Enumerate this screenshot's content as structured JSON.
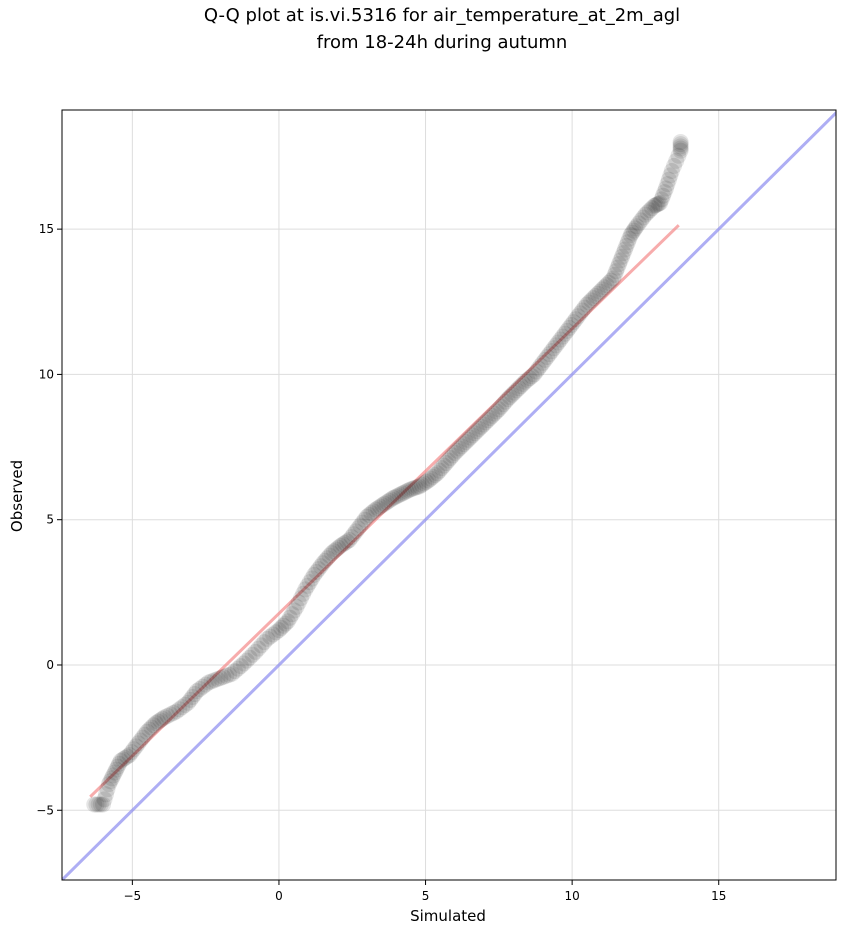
{
  "chart_data": {
    "type": "scatter",
    "title_line1": "Q-Q plot at is.vi.5316 for air_temperature_at_2m_agl",
    "title_line2": "from 18-24h during autumn",
    "xlabel": "Simulated",
    "ylabel": "Observed",
    "xlim": [
      -7.4,
      19.0
    ],
    "ylim": [
      -7.4,
      19.1
    ],
    "xticks": [
      -5,
      0,
      5,
      10,
      15
    ],
    "yticks": [
      -5,
      0,
      5,
      10,
      15
    ],
    "xtick_labels": [
      "−5",
      "0",
      "5",
      "10",
      "15"
    ],
    "ytick_labels": [
      "−5",
      "0",
      "5",
      "10",
      "15"
    ],
    "grid": true,
    "series": [
      {
        "kind": "points",
        "color": "#000000",
        "opacity": 0.1,
        "points": [
          [
            -6.3,
            -4.8
          ],
          [
            -6.0,
            -4.8
          ],
          [
            -5.8,
            -4.1
          ],
          [
            -5.6,
            -3.7
          ],
          [
            -5.4,
            -3.3
          ],
          [
            -5.1,
            -3.1
          ],
          [
            -4.8,
            -2.7
          ],
          [
            -4.5,
            -2.3
          ],
          [
            -4.2,
            -2.0
          ],
          [
            -3.9,
            -1.8
          ],
          [
            -3.5,
            -1.6
          ],
          [
            -3.1,
            -1.3
          ],
          [
            -2.8,
            -0.9
          ],
          [
            -2.4,
            -0.6
          ],
          [
            -2.0,
            -0.45
          ],
          [
            -1.6,
            -0.3
          ],
          [
            -1.2,
            0.05
          ],
          [
            -0.8,
            0.45
          ],
          [
            -0.4,
            0.9
          ],
          [
            0.0,
            1.2
          ],
          [
            0.3,
            1.5
          ],
          [
            0.6,
            2.0
          ],
          [
            0.9,
            2.6
          ],
          [
            1.2,
            3.1
          ],
          [
            1.5,
            3.5
          ],
          [
            1.8,
            3.85
          ],
          [
            2.1,
            4.1
          ],
          [
            2.4,
            4.3
          ],
          [
            2.7,
            4.7
          ],
          [
            3.0,
            5.1
          ],
          [
            3.3,
            5.35
          ],
          [
            3.6,
            5.55
          ],
          [
            3.9,
            5.75
          ],
          [
            4.2,
            5.9
          ],
          [
            4.5,
            6.05
          ],
          [
            4.8,
            6.15
          ],
          [
            5.1,
            6.35
          ],
          [
            5.4,
            6.6
          ],
          [
            5.7,
            6.95
          ],
          [
            6.0,
            7.3
          ],
          [
            6.3,
            7.6
          ],
          [
            6.6,
            7.9
          ],
          [
            6.9,
            8.2
          ],
          [
            7.2,
            8.5
          ],
          [
            7.5,
            8.8
          ],
          [
            7.8,
            9.15
          ],
          [
            8.1,
            9.45
          ],
          [
            8.4,
            9.75
          ],
          [
            8.7,
            10.0
          ],
          [
            9.0,
            10.4
          ],
          [
            9.3,
            10.8
          ],
          [
            9.6,
            11.2
          ],
          [
            9.9,
            11.6
          ],
          [
            10.2,
            12.0
          ],
          [
            10.5,
            12.4
          ],
          [
            10.8,
            12.7
          ],
          [
            11.1,
            13.0
          ],
          [
            11.4,
            13.3
          ],
          [
            11.6,
            13.8
          ],
          [
            11.8,
            14.3
          ],
          [
            12.0,
            14.8
          ],
          [
            12.2,
            15.1
          ],
          [
            12.5,
            15.5
          ],
          [
            12.8,
            15.8
          ],
          [
            13.0,
            15.9
          ],
          [
            13.2,
            16.4
          ],
          [
            13.4,
            17.0
          ],
          [
            13.7,
            17.7
          ],
          [
            13.7,
            18.0
          ]
        ]
      },
      {
        "kind": "line",
        "color": "#f27f7f",
        "opacity": 0.65,
        "x": [
          -6.4,
          13.6
        ],
        "y": [
          -4.5,
          15.1
        ]
      },
      {
        "kind": "line",
        "color": "#8b8bef",
        "opacity": 0.7,
        "x": [
          -7.4,
          19.0
        ],
        "y": [
          -7.4,
          19.0
        ]
      }
    ]
  }
}
